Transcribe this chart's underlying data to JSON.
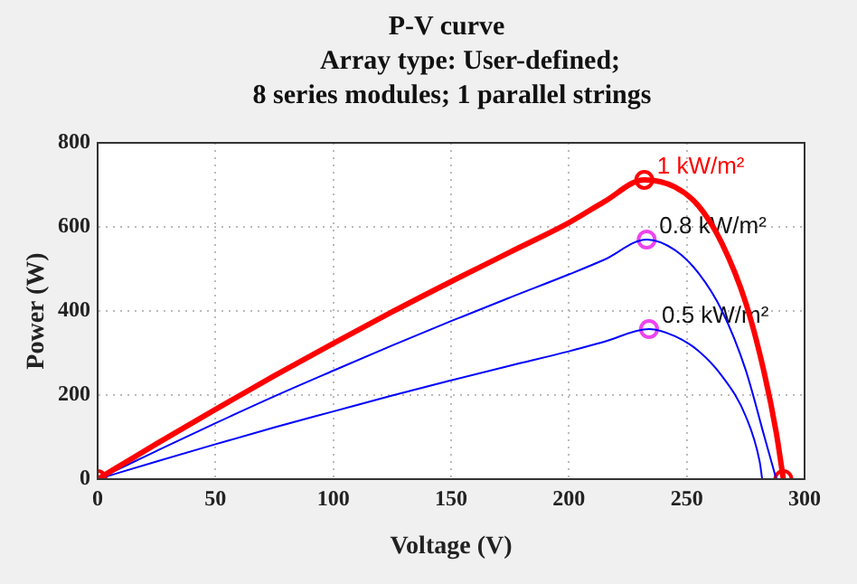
{
  "chart_data": {
    "type": "line",
    "title": "P-V curve",
    "subtitle": "Array type: User-defined;\n8 series modules; 1 parallel strings",
    "xlabel": "Voltage (V)",
    "ylabel": "Power (W)",
    "xlim": [
      0,
      300
    ],
    "xticks": [
      0,
      50,
      100,
      150,
      200,
      250,
      300
    ],
    "ylim": [
      0,
      800
    ],
    "yticks": [
      0,
      200,
      400,
      600,
      800
    ],
    "grid": true,
    "legend": false,
    "marker": "none",
    "line_style": "solid",
    "series": [
      {
        "name": "1 kW/m²",
        "color": "#ff0000",
        "x": [
          0,
          25,
          50,
          75,
          100,
          125,
          150,
          175,
          200,
          215,
          232,
          245,
          255,
          265,
          275,
          283,
          288,
          291
        ],
        "values": [
          0,
          84,
          166,
          246,
          323,
          398,
          470,
          540,
          610,
          660,
          712,
          695,
          650,
          560,
          420,
          250,
          110,
          0
        ]
      },
      {
        "name": "0.8 kW/m²",
        "color": "#0000ff",
        "x": [
          0,
          25,
          50,
          75,
          100,
          125,
          150,
          175,
          200,
          215,
          233,
          245,
          255,
          265,
          275,
          283,
          288
        ],
        "values": [
          0,
          67,
          133,
          197,
          258,
          318,
          376,
          432,
          487,
          522,
          570,
          545,
          490,
          400,
          260,
          100,
          0
        ]
      },
      {
        "name": "0.5 kW/m²",
        "color": "#0000ff",
        "x": [
          0,
          25,
          50,
          75,
          100,
          125,
          150,
          175,
          200,
          215,
          234,
          245,
          255,
          265,
          275,
          281,
          282
        ],
        "values": [
          0,
          42,
          83,
          123,
          161,
          199,
          235,
          270,
          304,
          327,
          357,
          340,
          305,
          245,
          150,
          40,
          0
        ]
      },
      {
        "type": "scatter",
        "marker": "circle",
        "color": "#ff0000",
        "x": [
          0,
          232,
          291
        ],
        "values": [
          0,
          712,
          0
        ]
      },
      {
        "type": "scatter",
        "marker": "circle",
        "color": "#ee44ee",
        "x": [
          233,
          234
        ],
        "values": [
          570,
          357
        ]
      }
    ]
  }
}
